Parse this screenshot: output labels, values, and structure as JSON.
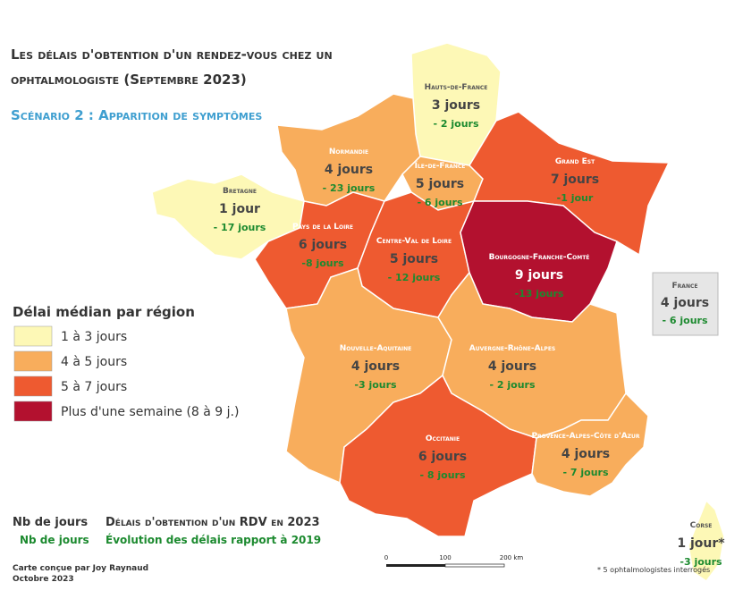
{
  "title": [
    "Les délais d'obtention d'un rendez-vous chez un",
    "ophtalmologiste (Septembre 2023)"
  ],
  "subtitle": "Scénario 2 : Apparition de symptômes",
  "legend": {
    "title": "Délai médian par région",
    "items": [
      {
        "label": "1 à 3 jours",
        "color": "#fdf8b6"
      },
      {
        "label": "4 à 5 jours",
        "color": "#f8ad5c"
      },
      {
        "label": "5 à 7 jours",
        "color": "#ee5a30"
      },
      {
        "label": "Plus d'une semaine (8 à 9 j.)",
        "color": "#b3112f"
      }
    ]
  },
  "regions": [
    {
      "name": "Hauts-de-France",
      "days": "3 jours",
      "change": "- 2 jours",
      "color": "#fdf8b6"
    },
    {
      "name": "Normandie",
      "days": "4 jours",
      "change": "- 23 jours",
      "color": "#f8ad5c"
    },
    {
      "name": "Île-de-France",
      "days": "5 jours",
      "change": "- 6 jours",
      "color": "#f8ad5c"
    },
    {
      "name": "Grand Est",
      "days": "7 jours",
      "change": "-1 jour",
      "color": "#ee5a30"
    },
    {
      "name": "Bretagne",
      "days": "1 jour",
      "change": "- 17 jours",
      "color": "#fdf8b6"
    },
    {
      "name": "Pays de la Loire",
      "days": "6 jours",
      "change": "-8 jours",
      "color": "#ee5a30"
    },
    {
      "name": "Centre-Val de Loire",
      "days": "5 jours",
      "change": "- 12 jours",
      "color": "#ee5a30"
    },
    {
      "name": "Bourgogne-Franche-Comté",
      "days": "9 jours",
      "change": "-13 jours",
      "color": "#b3112f"
    },
    {
      "name": "Nouvelle-Aquitaine",
      "days": "4 jours",
      "change": "-3 jours",
      "color": "#f8ad5c"
    },
    {
      "name": "Auvergne-Rhône-Alpes",
      "days": "4 jours",
      "change": "- 2 jours",
      "color": "#f8ad5c"
    },
    {
      "name": "Occitanie",
      "days": "6 jours",
      "change": "- 8 jours",
      "color": "#ee5a30"
    },
    {
      "name": "Provence-Alpes-Côte d'Azur",
      "days": "4 jours",
      "change": "- 7 jours",
      "color": "#f8ad5c"
    },
    {
      "name": "Corse",
      "days": "1 jour*",
      "change": "-3 jours",
      "color": "#fdf8b6"
    }
  ],
  "france": {
    "name": "France",
    "days": "4 jours",
    "change": "- 6 jours"
  },
  "key": {
    "days": "Nb de jours",
    "days_change": "Nb de jours",
    "days_desc": "Délais d'obtention d'un RDV en 2023",
    "change_desc": "Évolution des délais rapport à 2019"
  },
  "scale": [
    "0",
    "100",
    "200 km"
  ],
  "note": "* 5 ophtalmologistes interrogés",
  "credits": [
    "Carte conçue par Joy Raynaud",
    "Octobre 2023"
  ]
}
